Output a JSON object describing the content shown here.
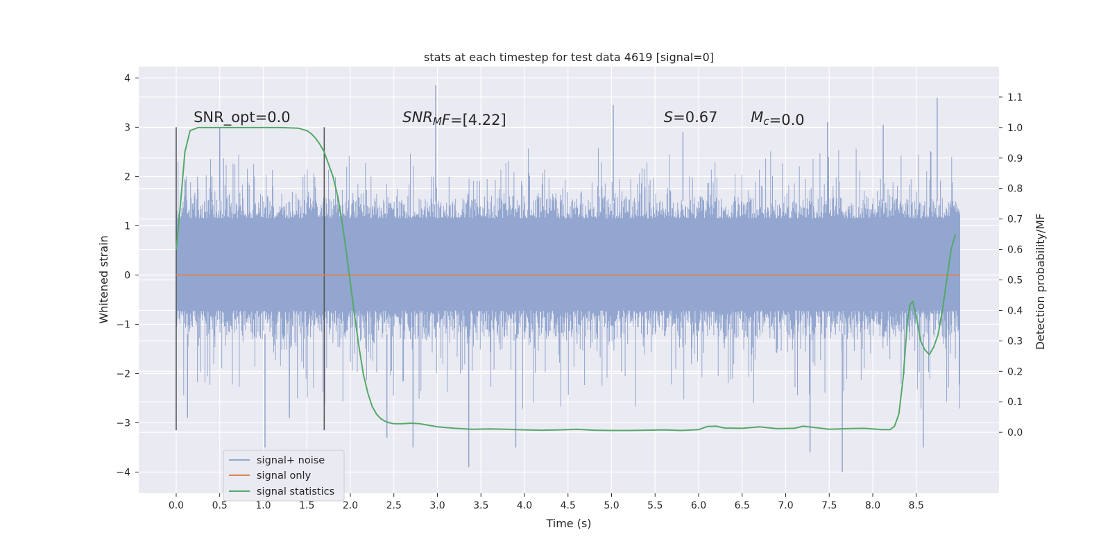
{
  "chart_data": {
    "type": "line",
    "title": "stats at each timestep for test data 4619 [signal=0]",
    "xlabel": "Time (s)",
    "ylabel_left": "Whitened strain",
    "ylabel_right": "Detection probability/MF",
    "xlim": [
      -0.43,
      9.45
    ],
    "ylim_left": [
      -4.43,
      4.23
    ],
    "ylim_right": [
      -0.2,
      1.2
    ],
    "x_ticks": [
      0.0,
      0.5,
      1.0,
      1.5,
      2.0,
      2.5,
      3.0,
      3.5,
      4.0,
      4.5,
      5.0,
      5.5,
      6.0,
      6.5,
      7.0,
      7.5,
      8.0,
      8.5
    ],
    "x_tick_labels": [
      "0.0",
      "0.5",
      "1.0",
      "1.5",
      "2.0",
      "2.5",
      "3.0",
      "3.5",
      "4.0",
      "4.5",
      "5.0",
      "5.5",
      "6.0",
      "6.5",
      "7.0",
      "7.5",
      "8.0",
      "8.5"
    ],
    "y_ticks_left": [
      4,
      3,
      2,
      1,
      0,
      -1,
      -2,
      -3,
      -4
    ],
    "y_tick_labels_left": [
      "4",
      "3",
      "2",
      "1",
      "0",
      "−1",
      "−2",
      "−3",
      "−4"
    ],
    "y_ticks_right": [
      1.1,
      1.0,
      0.9,
      0.8,
      0.7,
      0.6,
      0.5,
      0.4,
      0.3,
      0.2,
      0.1,
      0.0
    ],
    "y_tick_labels_right": [
      "1.1",
      "1.0",
      "0.9",
      "0.8",
      "0.7",
      "0.6",
      "0.5",
      "0.4",
      "0.3",
      "0.2",
      "0.1",
      "0.0"
    ],
    "grid": true,
    "legend_position": "lower-left",
    "noise": {
      "x_range": [
        0.0,
        9.0
      ],
      "core_band": [
        -0.72,
        1.15
      ],
      "envelope_low": [
        -1.3,
        -1.6,
        -2.2,
        -2.6,
        -2.8
      ],
      "envelope_high": [
        1.6,
        2.0,
        2.4,
        2.6
      ],
      "outliers": [
        {
          "x": 0.13,
          "y": -2.9
        },
        {
          "x": 0.41,
          "y": 2.0
        },
        {
          "x": 0.5,
          "y": 3.0
        },
        {
          "x": 1.02,
          "y": -3.5
        },
        {
          "x": 1.3,
          "y": -2.9
        },
        {
          "x": 2.98,
          "y": 3.85
        },
        {
          "x": 3.36,
          "y": -3.9
        },
        {
          "x": 2.72,
          "y": -3.5
        },
        {
          "x": 3.9,
          "y": -3.5
        },
        {
          "x": 5.02,
          "y": 3.45
        },
        {
          "x": 5.82,
          "y": 2.9
        },
        {
          "x": 7.48,
          "y": 3.1
        },
        {
          "x": 7.65,
          "y": -4.0
        },
        {
          "x": 7.28,
          "y": -3.6
        },
        {
          "x": 8.12,
          "y": 3.05
        },
        {
          "x": 8.74,
          "y": 3.6
        },
        {
          "x": 8.58,
          "y": -3.5
        },
        {
          "x": 2.42,
          "y": -3.3
        }
      ]
    },
    "vlines": [
      {
        "x": 0.0,
        "y_range": [
          -3.15,
          3.0
        ]
      },
      {
        "x": 1.7,
        "y_range": [
          -3.15,
          3.0
        ]
      }
    ],
    "series": [
      {
        "name": "signal+ noise",
        "axis": "left",
        "color": "#92a6cf",
        "kind": "noise"
      },
      {
        "name": "signal only",
        "axis": "left",
        "color": "#dd8452",
        "x": [
          0.0,
          9.0
        ],
        "y": [
          0.0,
          0.0
        ]
      },
      {
        "name": "signal statistics",
        "axis": "right",
        "color": "#55a868",
        "x": [
          0.0,
          0.05,
          0.1,
          0.16,
          0.25,
          0.4,
          0.6,
          0.8,
          1.0,
          1.2,
          1.4,
          1.5,
          1.55,
          1.6,
          1.65,
          1.7,
          1.75,
          1.8,
          1.85,
          1.9,
          1.95,
          2.0,
          2.05,
          2.1,
          2.15,
          2.2,
          2.25,
          2.3,
          2.35,
          2.4,
          2.45,
          2.5,
          2.6,
          2.7,
          2.8,
          2.9,
          3.0,
          3.2,
          3.4,
          3.6,
          3.8,
          4.0,
          4.2,
          4.4,
          4.6,
          4.8,
          5.0,
          5.2,
          5.4,
          5.6,
          5.8,
          6.0,
          6.1,
          6.2,
          6.3,
          6.5,
          6.7,
          6.9,
          7.1,
          7.2,
          7.3,
          7.5,
          7.7,
          7.9,
          8.0,
          8.1,
          8.2,
          8.25,
          8.3,
          8.35,
          8.4,
          8.43,
          8.46,
          8.5,
          8.55,
          8.6,
          8.65,
          8.7,
          8.75,
          8.8,
          8.85,
          8.9,
          8.95
        ],
        "y": [
          0.6,
          0.75,
          0.92,
          0.99,
          1.0,
          1.0,
          1.0,
          1.0,
          1.0,
          1.0,
          0.998,
          0.99,
          0.98,
          0.965,
          0.945,
          0.92,
          0.88,
          0.84,
          0.78,
          0.7,
          0.6,
          0.49,
          0.38,
          0.28,
          0.19,
          0.13,
          0.085,
          0.06,
          0.045,
          0.036,
          0.031,
          0.028,
          0.028,
          0.03,
          0.028,
          0.023,
          0.018,
          0.013,
          0.01,
          0.011,
          0.01,
          0.008,
          0.007,
          0.008,
          0.01,
          0.007,
          0.006,
          0.006,
          0.007,
          0.008,
          0.006,
          0.009,
          0.019,
          0.02,
          0.014,
          0.013,
          0.018,
          0.012,
          0.013,
          0.02,
          0.017,
          0.01,
          0.012,
          0.013,
          0.011,
          0.009,
          0.009,
          0.02,
          0.06,
          0.18,
          0.37,
          0.42,
          0.43,
          0.38,
          0.3,
          0.27,
          0.255,
          0.28,
          0.32,
          0.4,
          0.5,
          0.6,
          0.65
        ]
      }
    ],
    "annotations": [
      {
        "x": 0.2,
        "y": 3.1,
        "parts": [
          {
            "text": "SNR_opt=0.0",
            "style": "normal"
          }
        ]
      },
      {
        "x": 2.6,
        "y": 3.1,
        "parts": [
          {
            "text": "SNR",
            "style": "italic"
          },
          {
            "text": "M",
            "style": "italic-sub"
          },
          {
            "text": "F",
            "style": "italic"
          },
          {
            "text": "=[4.22]",
            "style": "normal"
          }
        ]
      },
      {
        "x": 5.6,
        "y": 3.1,
        "parts": [
          {
            "text": "S",
            "style": "italic"
          },
          {
            "text": "=0.67",
            "style": "normal"
          }
        ]
      },
      {
        "x": 6.6,
        "y": 3.1,
        "parts": [
          {
            "text": "M",
            "style": "italic"
          },
          {
            "text": "c",
            "style": "italic-sub"
          },
          {
            "text": "=0.0",
            "style": "normal"
          }
        ]
      }
    ]
  },
  "colors": {
    "axes_background": "#eaeaf2",
    "grid": "#ffffff",
    "vline": "#555555",
    "text": "#262626"
  }
}
